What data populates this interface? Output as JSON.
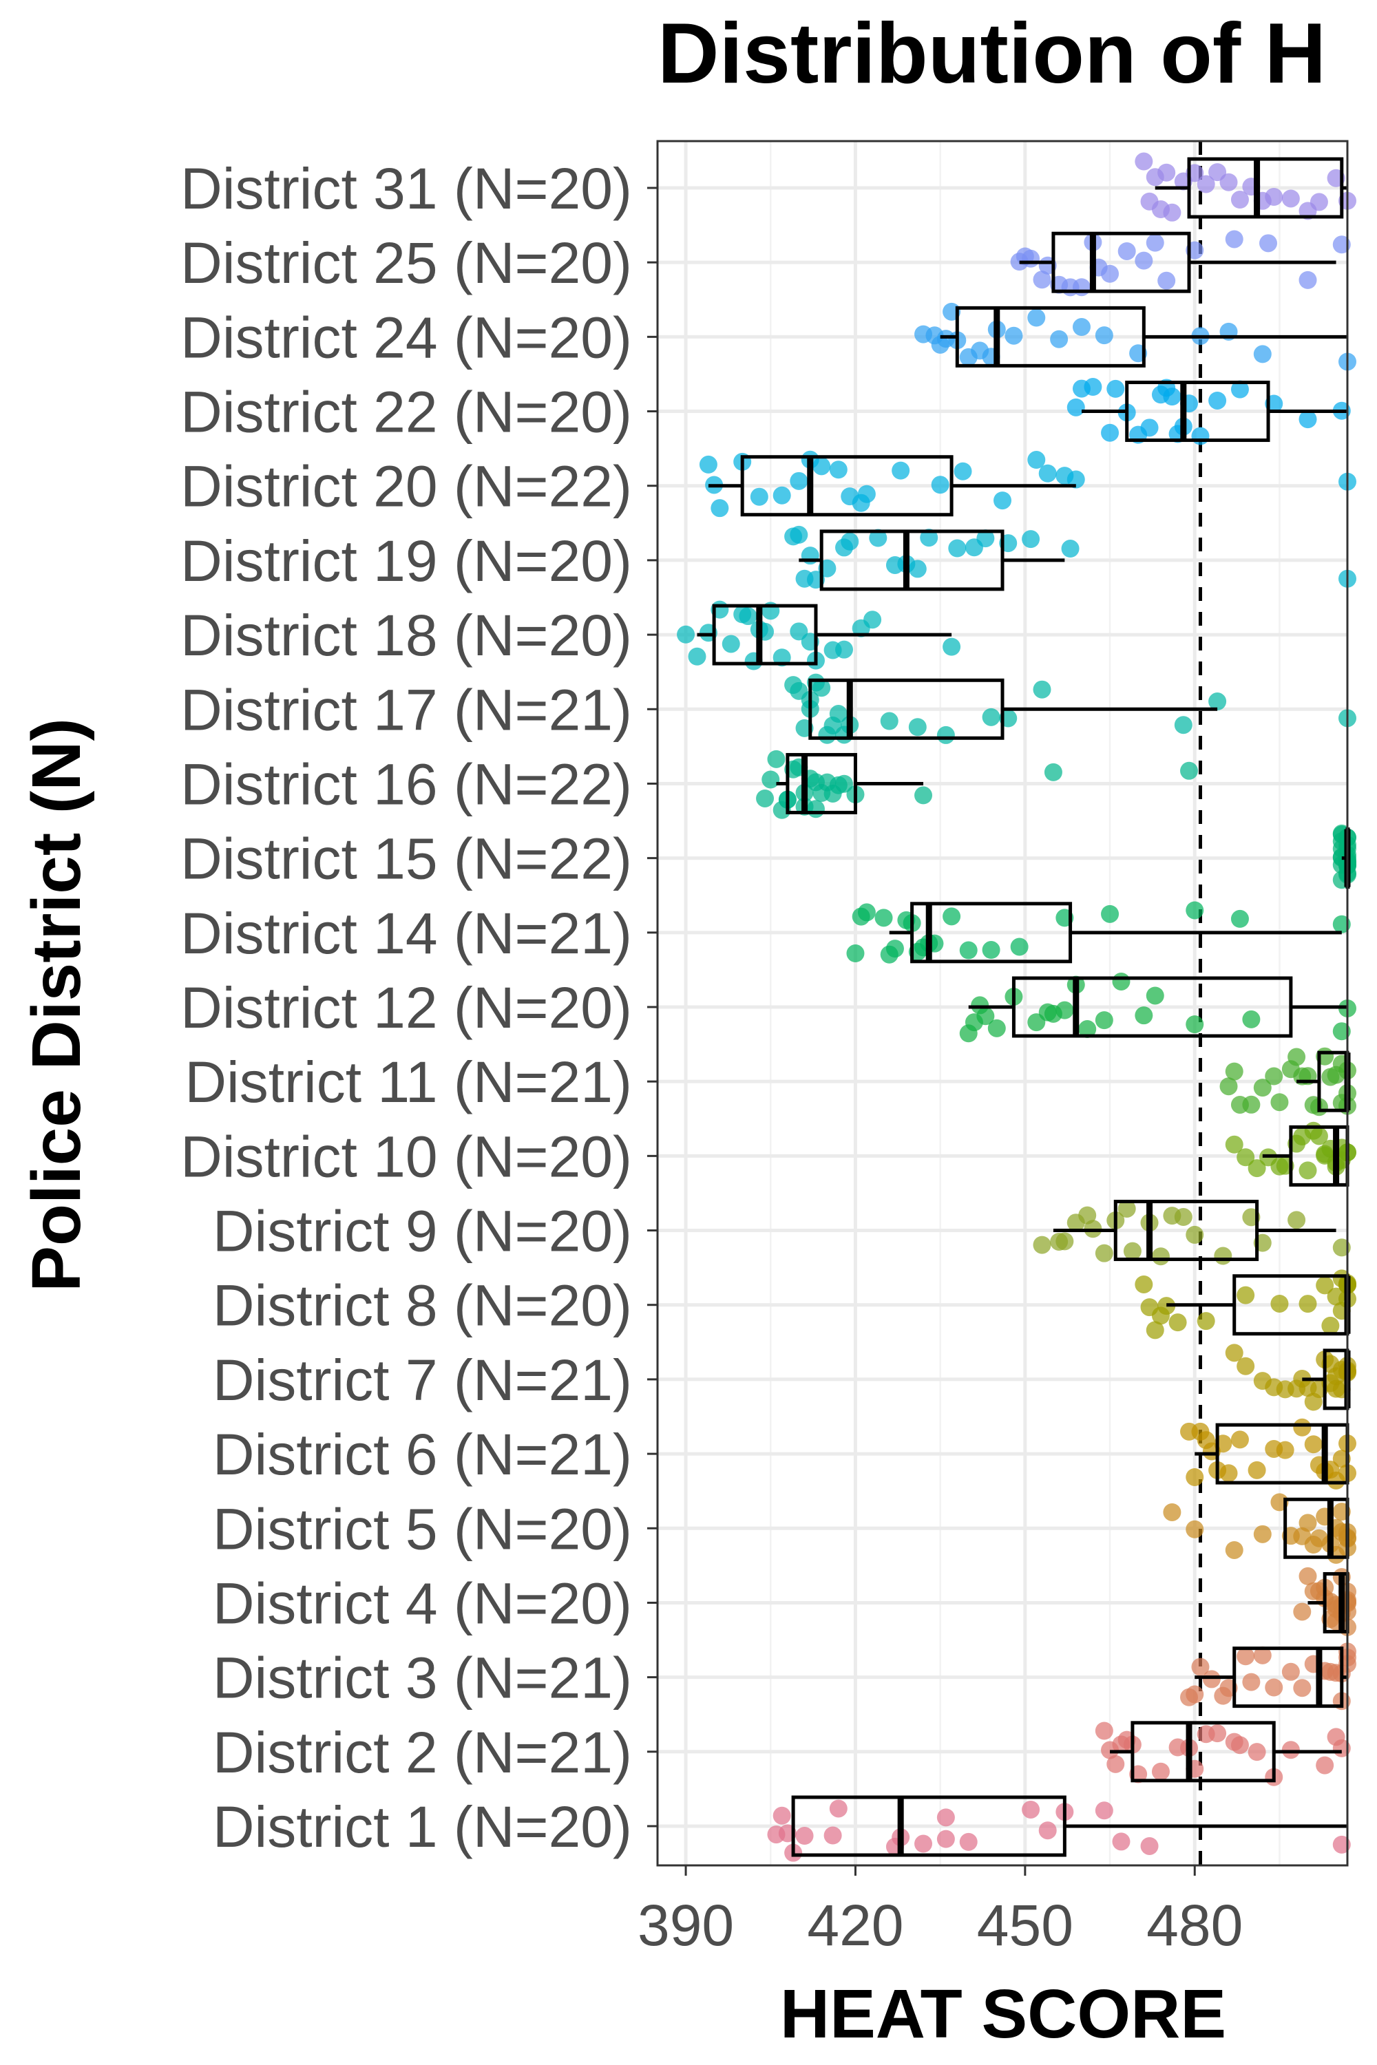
{
  "chart_data": {
    "type": "boxplot",
    "title": "Distribution of H",
    "xlabel": "HEAT SCORE",
    "ylabel": "Police District (N)",
    "xlim": [
      385,
      507
    ],
    "xticks": [
      390,
      420,
      450,
      480
    ],
    "reference_line": 481,
    "grid": true,
    "categories": [
      "District 1 (N=20)",
      "District 2 (N=21)",
      "District 3 (N=21)",
      "District 4 (N=20)",
      "District 5 (N=20)",
      "District 6 (N=21)",
      "District 7 (N=21)",
      "District 8 (N=20)",
      "District 9 (N=20)",
      "District 10 (N=20)",
      "District 11 (N=21)",
      "District 12 (N=20)",
      "District 14 (N=21)",
      "District 15 (N=22)",
      "District 16 (N=22)",
      "District 17 (N=21)",
      "District 18 (N=20)",
      "District 19 (N=20)",
      "District 20 (N=22)",
      "District 22 (N=20)",
      "District 24 (N=20)",
      "District 25 (N=20)",
      "District 31 (N=20)"
    ],
    "colors": [
      "#e0718a",
      "#de7470",
      "#d97c58",
      "#d3823f",
      "#c98a1e",
      "#bf9100",
      "#ae9900",
      "#9d9e00",
      "#8ba425",
      "#74aa0e",
      "#46ad2c",
      "#12b043",
      "#00b35c",
      "#00b377",
      "#00b58c",
      "#00b7a4",
      "#00b7ba",
      "#00b4cf",
      "#00b0e0",
      "#00a9ec",
      "#31a1f2",
      "#7a90f3",
      "#9a87e8"
    ],
    "boxes": [
      {
        "lo": 409,
        "q1": 409,
        "median": 428,
        "q3": 457,
        "hi": 507
      },
      {
        "lo": 465,
        "q1": 469,
        "median": 479,
        "q3": 494,
        "hi": 506
      },
      {
        "lo": 480,
        "q1": 487,
        "median": 502,
        "q3": 506,
        "hi": 507
      },
      {
        "lo": 500,
        "q1": 503,
        "median": 506,
        "q3": 507,
        "hi": 507
      },
      {
        "lo": 496,
        "q1": 496,
        "median": 504,
        "q3": 507,
        "hi": 507
      },
      {
        "lo": 480,
        "q1": 484,
        "median": 503,
        "q3": 507,
        "hi": 507
      },
      {
        "lo": 499,
        "q1": 503,
        "median": 507,
        "q3": 507,
        "hi": 507
      },
      {
        "lo": 475,
        "q1": 487,
        "median": 507,
        "q3": 507,
        "hi": 507
      },
      {
        "lo": 455,
        "q1": 466,
        "median": 472,
        "q3": 491,
        "hi": 505
      },
      {
        "lo": 492,
        "q1": 497,
        "median": 505,
        "q3": 507,
        "hi": 507
      },
      {
        "lo": 498,
        "q1": 502,
        "median": 507,
        "q3": 507,
        "hi": 507
      },
      {
        "lo": 440,
        "q1": 448,
        "median": 459,
        "q3": 497,
        "hi": 507
      },
      {
        "lo": 426,
        "q1": 430,
        "median": 433,
        "q3": 458,
        "hi": 506
      },
      {
        "lo": 506,
        "q1": 507,
        "median": 507,
        "q3": 507,
        "hi": 507
      },
      {
        "lo": 406,
        "q1": 408,
        "median": 411,
        "q3": 420,
        "hi": 432
      },
      {
        "lo": 412,
        "q1": 412,
        "median": 419,
        "q3": 446,
        "hi": 484
      },
      {
        "lo": 392,
        "q1": 395,
        "median": 403,
        "q3": 413,
        "hi": 437
      },
      {
        "lo": 410,
        "q1": 414,
        "median": 429,
        "q3": 446,
        "hi": 457
      },
      {
        "lo": 394,
        "q1": 400,
        "median": 412,
        "q3": 437,
        "hi": 459
      },
      {
        "lo": 460,
        "q1": 468,
        "median": 478,
        "q3": 493,
        "hi": 507
      },
      {
        "lo": 435,
        "q1": 438,
        "median": 445,
        "q3": 471,
        "hi": 507
      },
      {
        "lo": 449,
        "q1": 455,
        "median": 462,
        "q3": 479,
        "hi": 505
      },
      {
        "lo": 473,
        "q1": 479,
        "median": 491,
        "q3": 506,
        "hi": 507
      }
    ],
    "points": [
      [
        406,
        407,
        408,
        409,
        411,
        416,
        417,
        427,
        428,
        432,
        436,
        436,
        440,
        451,
        454,
        457,
        464,
        467,
        472,
        506
      ],
      [
        464,
        465,
        466,
        467,
        468,
        469,
        470,
        474,
        477,
        479,
        480,
        482,
        484,
        487,
        488,
        491,
        494,
        497,
        503,
        505,
        506
      ],
      [
        479,
        480,
        481,
        483,
        485,
        486,
        489,
        490,
        492,
        494,
        497,
        499,
        501,
        503,
        504,
        505,
        506,
        506,
        507,
        507,
        507
      ],
      [
        499,
        500,
        501,
        502,
        503,
        503,
        504,
        504,
        505,
        505,
        505,
        506,
        506,
        506,
        507,
        507,
        507,
        507,
        507,
        507
      ],
      [
        476,
        480,
        487,
        492,
        495,
        497,
        499,
        500,
        501,
        502,
        503,
        504,
        505,
        505,
        506,
        506,
        507,
        507,
        507,
        507
      ],
      [
        479,
        480,
        481,
        482,
        483,
        484,
        485,
        486,
        488,
        491,
        494,
        496,
        499,
        501,
        502,
        503,
        504,
        505,
        506,
        507,
        507
      ],
      [
        487,
        489,
        492,
        494,
        496,
        498,
        499,
        500,
        501,
        502,
        503,
        504,
        504,
        505,
        505,
        506,
        506,
        507,
        507,
        507,
        507
      ],
      [
        471,
        472,
        473,
        474,
        475,
        477,
        482,
        489,
        495,
        500,
        503,
        504,
        505,
        506,
        506,
        507,
        507,
        507,
        507,
        507
      ],
      [
        453,
        456,
        457,
        459,
        461,
        462,
        464,
        466,
        468,
        469,
        472,
        474,
        476,
        478,
        480,
        485,
        490,
        492,
        498,
        506
      ],
      [
        487,
        489,
        491,
        493,
        495,
        496,
        498,
        499,
        500,
        501,
        502,
        503,
        503,
        504,
        505,
        505,
        506,
        506,
        507,
        507
      ],
      [
        486,
        487,
        488,
        490,
        492,
        494,
        495,
        497,
        498,
        499,
        500,
        501,
        502,
        503,
        504,
        505,
        506,
        506,
        507,
        507,
        507
      ],
      [
        440,
        441,
        442,
        443,
        445,
        448,
        452,
        454,
        455,
        457,
        459,
        461,
        464,
        467,
        471,
        473,
        480,
        490,
        506,
        507
      ],
      [
        420,
        421,
        422,
        425,
        426,
        427,
        429,
        430,
        431,
        432,
        433,
        434,
        437,
        440,
        444,
        449,
        457,
        465,
        480,
        488,
        506
      ],
      [
        506,
        506,
        506,
        506,
        506,
        506,
        506,
        506,
        507,
        507,
        507,
        507,
        507,
        507,
        507,
        507,
        507,
        507,
        507,
        507,
        507,
        507
      ],
      [
        404,
        405,
        406,
        407,
        408,
        408,
        409,
        410,
        411,
        411,
        412,
        413,
        413,
        414,
        415,
        416,
        417,
        418,
        420,
        432,
        455,
        479
      ],
      [
        409,
        410,
        411,
        412,
        412,
        413,
        414,
        415,
        416,
        417,
        418,
        419,
        426,
        431,
        436,
        444,
        447,
        453,
        478,
        484,
        507
      ],
      [
        390,
        392,
        394,
        396,
        398,
        400,
        401,
        402,
        403,
        404,
        405,
        407,
        410,
        412,
        413,
        416,
        418,
        421,
        423,
        437
      ],
      [
        409,
        410,
        411,
        412,
        413,
        415,
        418,
        419,
        424,
        427,
        429,
        431,
        433,
        438,
        441,
        443,
        447,
        451,
        458,
        507
      ],
      [
        394,
        395,
        396,
        400,
        403,
        407,
        410,
        412,
        414,
        417,
        419,
        421,
        422,
        428,
        435,
        439,
        446,
        452,
        454,
        457,
        459,
        507
      ],
      [
        459,
        460,
        462,
        465,
        466,
        468,
        470,
        472,
        474,
        475,
        476,
        477,
        478,
        479,
        481,
        484,
        488,
        494,
        500,
        506
      ],
      [
        432,
        434,
        435,
        436,
        437,
        438,
        440,
        442,
        444,
        445,
        448,
        452,
        456,
        460,
        464,
        470,
        481,
        486,
        492,
        507
      ],
      [
        449,
        450,
        451,
        453,
        454,
        456,
        458,
        460,
        462,
        463,
        465,
        468,
        471,
        473,
        475,
        480,
        487,
        493,
        500,
        506
      ],
      [
        471,
        472,
        473,
        474,
        475,
        476,
        478,
        480,
        482,
        484,
        486,
        488,
        490,
        492,
        494,
        497,
        500,
        502,
        505,
        507
      ]
    ]
  }
}
